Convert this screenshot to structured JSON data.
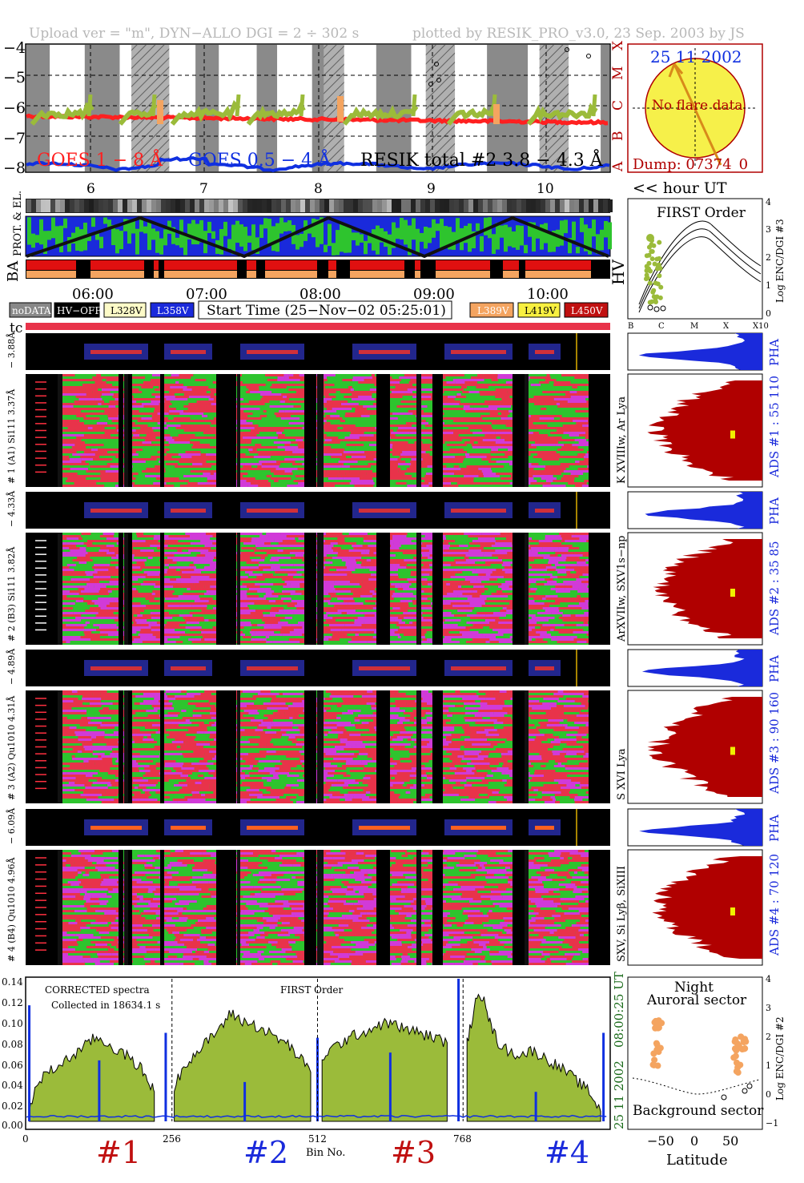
{
  "header": {
    "left": "Upload ver = \"m\", DYN−ALLO DGI =   2 ÷ 302 s",
    "right": "plotted by RESIK_PRO_v3.0, 23 Sep. 2003 by JS"
  },
  "colors": {
    "goes_long": "#ff2020",
    "goes_short": "#1030e0",
    "resik_total": "#9bbb3a",
    "orange": "#f4a460",
    "spec_red": "#e8334a",
    "spec_green": "#2ec42e",
    "spec_magenta": "#d13ad8",
    "ads_fill": "#b00000",
    "pha_fill": "#1a2adb",
    "yellow": "#f0f000"
  },
  "goes_panel": {
    "y_ticks": [
      "−4",
      "−5",
      "−6",
      "−7",
      "−8"
    ],
    "class_letters": [
      "X",
      "M",
      "C",
      "B",
      "A"
    ],
    "legend_goes_long": "GOES 1 − 8 Å",
    "legend_goes_short": "GOES 0.5 − 4 Å",
    "legend_resik": "RESIK total #2  3.8 − 4.3 Å",
    "hour_ticks": [
      "6",
      "7",
      "8",
      "9",
      "10"
    ],
    "hour_label": "<< hour UT"
  },
  "sun": {
    "date": "25 11 2002",
    "no_flare": "No flare data",
    "dump": "Dump: 07374_0"
  },
  "strips": {
    "prot_label": "PROT. & EL.",
    "ba_label": "BA",
    "hv_label": "HV",
    "time_ticks": [
      "06:00",
      "07:00",
      "08:00",
      "09:00",
      "10:00"
    ]
  },
  "legend_boxes": {
    "nodata": "noDATA",
    "hvoff": "HV−OFF",
    "l328": "L328V",
    "l358": "L358V",
    "start_time": "Start Time (25−Nov−02 05:25:01)",
    "l389": "L389V",
    "l419": "L419V",
    "l450": "L450V",
    "tc": "tc"
  },
  "first_order": {
    "title": "FIRST Order",
    "ylabel": "Log ENC/DGI #3",
    "y_ticks": [
      "4",
      "3",
      "2",
      "1",
      "0"
    ],
    "x_ticks": [
      "B",
      "C",
      "M",
      "X",
      "X10"
    ]
  },
  "channels": [
    {
      "pha_label": "− 6.09Å",
      "main_label": "# 4 (B4) Qu1010 4.96Å",
      "ads_label": "ADS #4 :   70 120",
      "line_label": "SXV, Si Lyβ, SiXIII"
    },
    {
      "pha_label": "− 4.89Å",
      "main_label": "# 3 (A2) Qu1010 4.31Å",
      "ads_label": "ADS #3 :   90 160",
      "line_label": "S XVI Lya"
    },
    {
      "pha_label": "− 4.33Å",
      "main_label": "# 2 (B3) Si111 3.82Å",
      "ads_label": "ADS #2 :   35 85",
      "line_label": "ArXVIIw, SXV1s−np"
    },
    {
      "pha_label": "− 3.88Å",
      "main_label": "# 1 (A1) Si111 3.37Å",
      "ads_label": "ADS #1 :   55 110",
      "line_label": "K XVIIIw, Ar Lya"
    }
  ],
  "pha_text": "PHA",
  "spectrum": {
    "title_left": "CORRECTED spectra",
    "collected": "Collected in 18634.1 s",
    "title_mid": "FIRST Order",
    "y_ticks": [
      "0.14",
      "0.12",
      "0.10",
      "0.08",
      "0.06",
      "0.04",
      "0.02",
      "0.00"
    ],
    "x_ticks": [
      "0",
      "256",
      "512",
      "768"
    ],
    "xlabel": "Bin No.",
    "date_vertical": "25 11 2002",
    "time_vertical": "08:00:25 UT",
    "channel_labels": [
      "#1",
      "#2",
      "#3",
      "#4"
    ]
  },
  "latitude_panel": {
    "title_night": "Night",
    "title_auroral": "Auroral sector",
    "title_background": "Background sector",
    "xlabel": "Latitude",
    "x_ticks": [
      "−50",
      "0",
      "50"
    ],
    "ylabel": "Log ENC/DGI #2",
    "y_ticks": [
      "4",
      "3",
      "2",
      "1",
      "0",
      "−1"
    ]
  },
  "chart_data": {
    "type": "line",
    "title": "CORRECTED spectra",
    "xlabel": "Bin No.",
    "ylabel": "",
    "xlim": [
      0,
      1024
    ],
    "ylim": [
      0,
      0.145
    ],
    "series": [
      {
        "name": "#1",
        "x": [
          5,
          20,
          40,
          60,
          80,
          100,
          120,
          140,
          160,
          180,
          200,
          215,
          225
        ],
        "values": [
          0.01,
          0.04,
          0.05,
          0.058,
          0.066,
          0.075,
          0.085,
          0.08,
          0.072,
          0.065,
          0.055,
          0.04,
          0.03
        ]
      },
      {
        "name": "#2",
        "x": [
          260,
          280,
          300,
          320,
          340,
          360,
          380,
          400,
          420,
          440,
          460,
          480,
          500
        ],
        "values": [
          0.035,
          0.06,
          0.07,
          0.082,
          0.095,
          0.11,
          0.102,
          0.098,
          0.092,
          0.085,
          0.078,
          0.065,
          0.05
        ]
      },
      {
        "name": "#3",
        "x": [
          520,
          540,
          560,
          580,
          600,
          620,
          640,
          660,
          680,
          700,
          720,
          740
        ],
        "values": [
          0.065,
          0.075,
          0.082,
          0.088,
          0.092,
          0.098,
          0.1,
          0.095,
          0.092,
          0.088,
          0.085,
          0.08
        ]
      },
      {
        "name": "#4",
        "x": [
          775,
          790,
          805,
          815,
          830,
          850,
          870,
          890,
          910,
          930,
          950,
          970,
          990,
          1010
        ],
        "values": [
          0.08,
          0.12,
          0.13,
          0.1,
          0.08,
          0.07,
          0.068,
          0.072,
          0.065,
          0.058,
          0.05,
          0.04,
          0.03,
          0.01
        ]
      }
    ],
    "blue_spikes": [
      {
        "x": 128,
        "value": 0.062
      },
      {
        "x": 384,
        "value": 0.04
      },
      {
        "x": 640,
        "value": 0.07
      },
      {
        "x": 896,
        "value": 0.03
      }
    ],
    "edge_spikes": [
      {
        "x": 5,
        "value": 0.118
      },
      {
        "x": 245,
        "value": 0.09
      },
      {
        "x": 512,
        "value": 0.085
      },
      {
        "x": 760,
        "value": 0.145
      },
      {
        "x": 1015,
        "value": 0.09
      }
    ]
  }
}
